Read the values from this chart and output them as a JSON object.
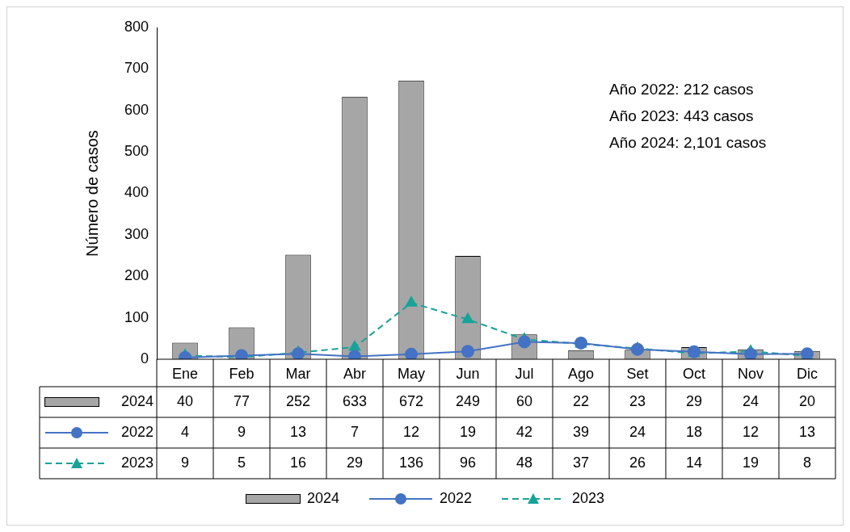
{
  "chart_data": {
    "type": "bar",
    "ylabel": "Número de casos",
    "categories": [
      "Ene",
      "Feb",
      "Mar",
      "Abr",
      "May",
      "Jun",
      "Jul",
      "Ago",
      "Set",
      "Oct",
      "Nov",
      "Dic"
    ],
    "series": [
      {
        "name": "2024",
        "color": "#a6a6a6",
        "values": [
          40,
          77,
          252,
          633,
          672,
          249,
          60,
          22,
          23,
          29,
          24,
          20
        ]
      },
      {
        "name": "2022",
        "type": "line",
        "color": "#4472c4",
        "marker": "circle",
        "line_style": "solid",
        "values": [
          4,
          9,
          13,
          7,
          12,
          19,
          42,
          39,
          24,
          18,
          12,
          13
        ]
      },
      {
        "name": "2023",
        "type": "line",
        "color": "#17a398",
        "marker": "triangle",
        "line_style": "dashed",
        "values": [
          9,
          5,
          16,
          29,
          136,
          96,
          48,
          37,
          26,
          14,
          19,
          8
        ]
      }
    ],
    "ylim": [
      0,
      800
    ],
    "yticks": [
      0,
      100,
      200,
      300,
      400,
      500,
      600,
      700,
      800
    ],
    "grid": false,
    "legend": "bottom",
    "data_labels": true,
    "annotations": [
      "Año 2022: 212 casos",
      "Año 2023: 443 casos",
      "Año 2024: 2,101 casos"
    ]
  }
}
